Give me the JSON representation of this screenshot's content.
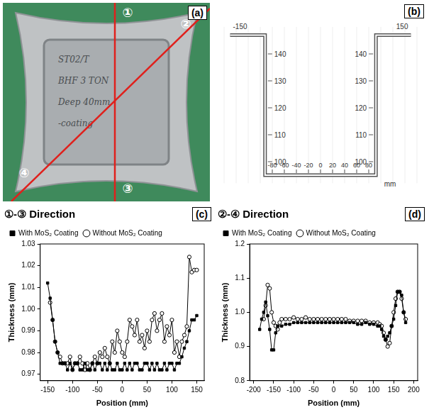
{
  "photo": {
    "panel": "(a)",
    "markers": [
      "①",
      "②",
      "③",
      "④"
    ],
    "handwriting": [
      "ST02/T",
      "BHF 3 TON",
      "Deep 40mm",
      "-coating"
    ]
  },
  "diagram": {
    "panel": "(b)",
    "profile": [
      [
        -150,
        147
      ],
      [
        -92,
        147
      ],
      [
        -92,
        95
      ],
      [
        92,
        95
      ],
      [
        92,
        147
      ],
      [
        150,
        147
      ]
    ],
    "xticks": [
      -80,
      -60,
      -40,
      -20,
      0,
      20,
      40,
      60,
      80
    ],
    "x_unit": "mm",
    "yticks": [
      100,
      110,
      120,
      130,
      140
    ],
    "end_labels": [
      -150,
      150
    ]
  },
  "chart_data": [
    {
      "type": "line",
      "panel": "(c)",
      "title": "①-③ Direction",
      "x_label": "Position (mm)",
      "y_label": "Thickness (mm)",
      "xlim": [
        -165,
        165
      ],
      "xticks": [
        -150,
        -100,
        -50,
        0,
        50,
        100,
        150
      ],
      "ylim": [
        0.967,
        1.03
      ],
      "yticks": [
        0.97,
        0.98,
        0.99,
        {
          "value": 1,
          "label": "1.00"
        },
        1.01,
        1.02,
        1.03
      ],
      "grid": false,
      "legend": "top",
      "series": [
        {
          "name": "With MoS₂ Coating",
          "color": "#000000",
          "marker": "square",
          "line_style": "solid",
          "x": [
            -150,
            -145,
            -140,
            -135,
            -130,
            -125,
            -120,
            -115,
            -110,
            -105,
            -100,
            -95,
            -90,
            -85,
            -80,
            -75,
            -70,
            -65,
            -60,
            -55,
            -50,
            -45,
            -40,
            -35,
            -30,
            -25,
            -20,
            -15,
            -10,
            -5,
            0,
            5,
            10,
            15,
            20,
            25,
            30,
            35,
            40,
            45,
            50,
            55,
            60,
            65,
            70,
            75,
            80,
            85,
            90,
            95,
            100,
            105,
            110,
            115,
            120,
            125,
            130,
            135,
            140,
            145,
            150
          ],
          "values": [
            1.012,
            1.005,
            0.995,
            0.985,
            0.98,
            0.975,
            0.975,
            0.975,
            0.972,
            0.975,
            0.972,
            0.975,
            0.975,
            0.972,
            0.972,
            0.975,
            0.972,
            0.972,
            0.975,
            0.972,
            0.975,
            0.975,
            0.972,
            0.975,
            0.972,
            0.975,
            0.972,
            0.972,
            0.975,
            0.972,
            0.972,
            0.975,
            0.972,
            0.975,
            0.972,
            0.975,
            0.975,
            0.972,
            0.972,
            0.975,
            0.975,
            0.972,
            0.975,
            0.972,
            0.975,
            0.972,
            0.972,
            0.975,
            0.972,
            0.975,
            0.975,
            0.972,
            0.975,
            0.975,
            0.978,
            0.982,
            0.985,
            0.99,
            0.995,
            0.995,
            0.997
          ]
        },
        {
          "name": "Without MoS₂ Coating",
          "color": "#000000",
          "marker": "open_circle",
          "line_style": "solid",
          "x": [
            -145,
            -140,
            -135,
            -130,
            -125,
            -120,
            -115,
            -110,
            -105,
            -100,
            -95,
            -90,
            -85,
            -80,
            -75,
            -70,
            -65,
            -60,
            -55,
            -50,
            -45,
            -40,
            -35,
            -30,
            -25,
            -20,
            -15,
            -10,
            -5,
            0,
            5,
            10,
            15,
            20,
            25,
            30,
            35,
            40,
            45,
            50,
            55,
            60,
            65,
            70,
            75,
            80,
            85,
            90,
            95,
            100,
            105,
            110,
            115,
            120,
            125,
            130,
            135,
            140,
            145,
            150
          ],
          "values": [
            1.003,
            0.995,
            0.985,
            0.98,
            0.978,
            0.975,
            0.975,
            0.975,
            0.978,
            0.972,
            0.975,
            0.975,
            0.978,
            0.975,
            0.972,
            0.975,
            0.972,
            0.975,
            0.978,
            0.975,
            0.98,
            0.978,
            0.982,
            0.978,
            0.975,
            0.985,
            0.98,
            0.99,
            0.985,
            0.98,
            0.978,
            0.985,
            0.995,
            0.992,
            0.988,
            0.995,
            0.985,
            0.988,
            0.982,
            0.99,
            0.985,
            0.995,
            0.998,
            0.99,
            0.995,
            0.998,
            0.985,
            0.992,
            0.988,
            0.995,
            0.98,
            0.985,
            0.978,
            0.985,
            0.988,
            0.992,
            1.024,
            1.017,
            1.018,
            1.018
          ]
        }
      ]
    },
    {
      "type": "line",
      "panel": "(d)",
      "title": "②-④ Direction",
      "x_label": "Position (mm)",
      "y_label": "Thickness (mm)",
      "xlim": [
        -210,
        210
      ],
      "xticks": [
        -200,
        -150,
        -100,
        -50,
        0,
        50,
        100,
        150,
        200
      ],
      "ylim": [
        0.8,
        1.2
      ],
      "yticks": [
        0.8,
        0.9,
        {
          "value": 1,
          "label": "1.0"
        },
        1.1,
        1.2
      ],
      "grid": false,
      "legend": "top",
      "series": [
        {
          "name": "With MoS₂ Coating",
          "color": "#000000",
          "marker": "square",
          "line_style": "solid",
          "x": [
            -185,
            -180,
            -175,
            -170,
            -165,
            -160,
            -155,
            -150,
            -145,
            -140,
            -130,
            -120,
            -110,
            -100,
            -90,
            -80,
            -70,
            -60,
            -50,
            -40,
            -30,
            -20,
            -10,
            0,
            10,
            20,
            30,
            40,
            50,
            60,
            70,
            80,
            90,
            100,
            110,
            115,
            120,
            125,
            130,
            135,
            140,
            145,
            150,
            155,
            160,
            165,
            170,
            175,
            180
          ],
          "values": [
            0.95,
            0.98,
            1.0,
            1.03,
            0.99,
            0.95,
            0.89,
            0.89,
            0.94,
            0.96,
            0.96,
            0.965,
            0.965,
            0.97,
            0.97,
            0.97,
            0.97,
            0.97,
            0.97,
            0.97,
            0.97,
            0.97,
            0.97,
            0.97,
            0.97,
            0.97,
            0.97,
            0.97,
            0.97,
            0.965,
            0.965,
            0.97,
            0.965,
            0.965,
            0.96,
            0.96,
            0.95,
            0.93,
            0.92,
            0.93,
            0.94,
            0.96,
            0.98,
            1.02,
            1.06,
            1.06,
            1.05,
            1.0,
            0.97
          ]
        },
        {
          "name": "Without MoS₂ Coating",
          "color": "#000000",
          "marker": "open_circle",
          "line_style": "solid",
          "x": [
            -175,
            -170,
            -165,
            -160,
            -155,
            -150,
            -145,
            -140,
            -135,
            -130,
            -120,
            -110,
            -100,
            -90,
            -80,
            -70,
            -60,
            -50,
            -40,
            -30,
            -20,
            -10,
            0,
            10,
            20,
            30,
            40,
            50,
            60,
            70,
            80,
            90,
            100,
            110,
            115,
            120,
            125,
            130,
            135,
            140,
            145,
            150,
            155,
            160,
            165,
            170,
            175,
            180
          ],
          "values": [
            0.98,
            1.02,
            1.08,
            1.07,
            1.0,
            0.97,
            0.96,
            0.95,
            0.97,
            0.98,
            0.98,
            0.98,
            0.985,
            0.98,
            0.98,
            0.985,
            0.98,
            0.98,
            0.98,
            0.98,
            0.98,
            0.98,
            0.98,
            0.98,
            0.98,
            0.98,
            0.975,
            0.975,
            0.975,
            0.975,
            0.975,
            0.97,
            0.97,
            0.97,
            0.965,
            0.96,
            0.94,
            0.92,
            0.9,
            0.91,
            0.96,
            1.0,
            1.04,
            1.06,
            1.06,
            1.04,
            1.0,
            0.98
          ]
        }
      ]
    }
  ]
}
